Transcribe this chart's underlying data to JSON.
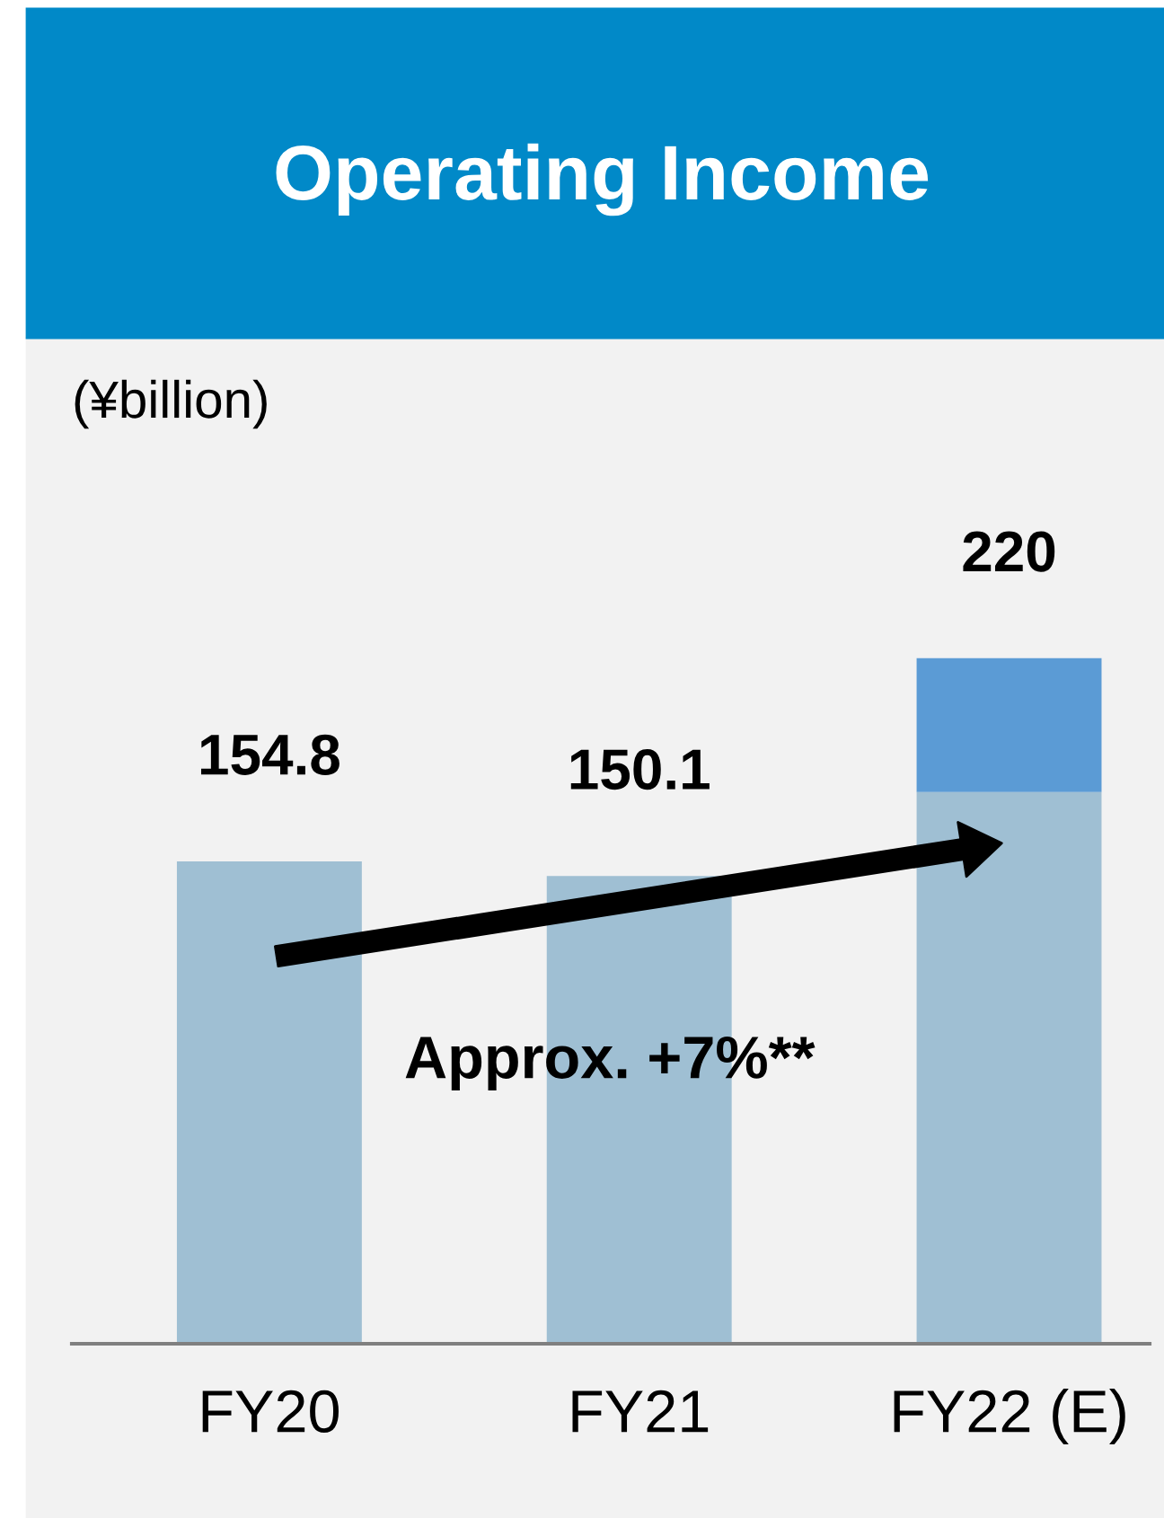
{
  "chart_data": {
    "type": "bar",
    "title": "Operating Income",
    "ylabel": "(¥billion)",
    "categories": [
      "FY20",
      "FY21",
      "FY22 (E)"
    ],
    "stacked": true,
    "series": [
      {
        "color": "#9fbfd3",
        "values": [
          154.8,
          150.1,
          177
        ],
        "value_labels": [
          "154.8",
          "150.1",
          null
        ]
      },
      {
        "color": "#5b9bd5",
        "values": [
          null,
          null,
          43
        ]
      }
    ],
    "totals": [
      null,
      null,
      "220"
    ],
    "annotations": [
      "Approx. +7%**"
    ],
    "grid": false,
    "legend": false
  }
}
